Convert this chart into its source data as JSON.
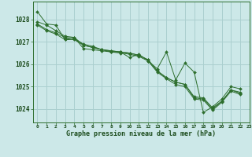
{
  "title": "Graphe pression niveau de la mer (hPa)",
  "background_color": "#cce8e8",
  "grid_color": "#aacfcf",
  "line_color": "#2d6e2d",
  "marker_color": "#2d6e2d",
  "xlim": [
    -0.5,
    23
  ],
  "ylim": [
    1023.4,
    1028.8
  ],
  "yticks": [
    1024,
    1025,
    1026,
    1027,
    1028
  ],
  "xticks": [
    0,
    1,
    2,
    3,
    4,
    5,
    6,
    7,
    8,
    9,
    10,
    11,
    12,
    13,
    14,
    15,
    16,
    17,
    18,
    19,
    20,
    21,
    22,
    23
  ],
  "series": [
    [
      1028.35,
      1027.8,
      1027.75,
      1027.1,
      1027.2,
      1026.7,
      1026.65,
      1026.6,
      1026.55,
      1026.55,
      1026.3,
      1026.45,
      1026.15,
      1025.8,
      1026.55,
      1025.3,
      1026.05,
      1025.65,
      1023.85,
      1024.1,
      1024.45,
      1025.0,
      1024.9
    ],
    [
      1027.9,
      1027.75,
      1027.5,
      1027.25,
      1027.2,
      1026.85,
      1026.75,
      1026.65,
      1026.6,
      1026.55,
      1026.5,
      1026.4,
      1026.2,
      1025.7,
      1025.4,
      1025.2,
      1025.1,
      1024.55,
      1024.5,
      1024.05,
      1024.35,
      1024.85,
      1024.75
    ],
    [
      1027.8,
      1027.55,
      1027.4,
      1027.2,
      1027.15,
      1026.9,
      1026.8,
      1026.65,
      1026.6,
      1026.55,
      1026.5,
      1026.4,
      1026.2,
      1025.7,
      1025.4,
      1025.2,
      1025.1,
      1024.5,
      1024.45,
      1024.0,
      1024.35,
      1024.85,
      1024.7
    ],
    [
      1027.75,
      1027.5,
      1027.35,
      1027.1,
      1027.1,
      1026.85,
      1026.75,
      1026.65,
      1026.55,
      1026.5,
      1026.45,
      1026.35,
      1026.15,
      1025.65,
      1025.35,
      1025.1,
      1025.0,
      1024.45,
      1024.4,
      1023.95,
      1024.3,
      1024.8,
      1024.65
    ]
  ]
}
